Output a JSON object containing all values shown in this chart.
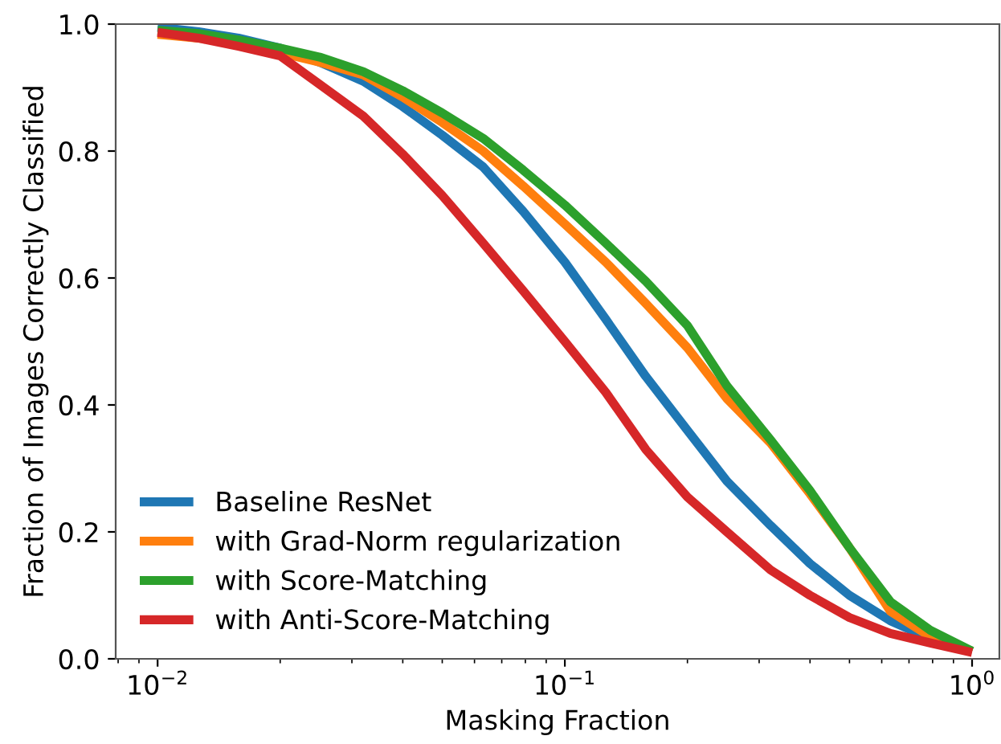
{
  "chart_data": {
    "type": "line",
    "xlabel": "Masking Fraction",
    "ylabel": "Fraction of Images Correctly Classified",
    "x": [
      0.01,
      0.0126,
      0.0158,
      0.02,
      0.025,
      0.032,
      0.04,
      0.05,
      0.063,
      0.079,
      0.1,
      0.126,
      0.158,
      0.2,
      0.25,
      0.32,
      0.4,
      0.5,
      0.63,
      0.79,
      1.0
    ],
    "series": [
      {
        "name": "Baseline ResNet",
        "color": "#1f77b4",
        "values": [
          0.995,
          0.988,
          0.978,
          0.962,
          0.94,
          0.91,
          0.87,
          0.825,
          0.775,
          0.705,
          0.625,
          0.535,
          0.445,
          0.36,
          0.28,
          0.21,
          0.15,
          0.1,
          0.06,
          0.032,
          0.012
        ]
      },
      {
        "name": "with Grad-Norm regularization",
        "color": "#ff7f0e",
        "values": [
          0.984,
          0.978,
          0.97,
          0.955,
          0.94,
          0.92,
          0.885,
          0.845,
          0.8,
          0.745,
          0.685,
          0.625,
          0.56,
          0.49,
          0.41,
          0.34,
          0.26,
          0.175,
          0.075,
          0.035,
          0.012
        ]
      },
      {
        "name": "with Score-Matching",
        "color": "#2ca02c",
        "values": [
          0.99,
          0.985,
          0.975,
          0.962,
          0.948,
          0.925,
          0.895,
          0.86,
          0.82,
          0.77,
          0.715,
          0.655,
          0.595,
          0.525,
          0.43,
          0.345,
          0.265,
          0.175,
          0.09,
          0.045,
          0.012
        ]
      },
      {
        "name": "with Anti-Score-Matching",
        "color": "#d62728",
        "values": [
          0.987,
          0.978,
          0.965,
          0.95,
          0.905,
          0.855,
          0.795,
          0.73,
          0.655,
          0.58,
          0.5,
          0.42,
          0.33,
          0.255,
          0.2,
          0.14,
          0.1,
          0.065,
          0.04,
          0.025,
          0.01
        ]
      }
    ],
    "log": "x",
    "xlim": [
      0.00789,
      1.167
    ],
    "xticks": [
      {
        "value": 0.01,
        "label": "10$^{−2}$"
      },
      {
        "value": 0.1,
        "label": "10$^{−1}$"
      },
      {
        "value": 1,
        "label": "10$^{0}$"
      }
    ],
    "ylim": [
      0,
      1
    ],
    "yticks": [
      {
        "value": 0,
        "label": "0.0"
      },
      0.2,
      0.4,
      0.6,
      0.8,
      {
        "value": 1,
        "label": "1.0"
      }
    ],
    "legend": "bottom left",
    "grid": false,
    "marker": "none",
    "line_style": "solid"
  }
}
